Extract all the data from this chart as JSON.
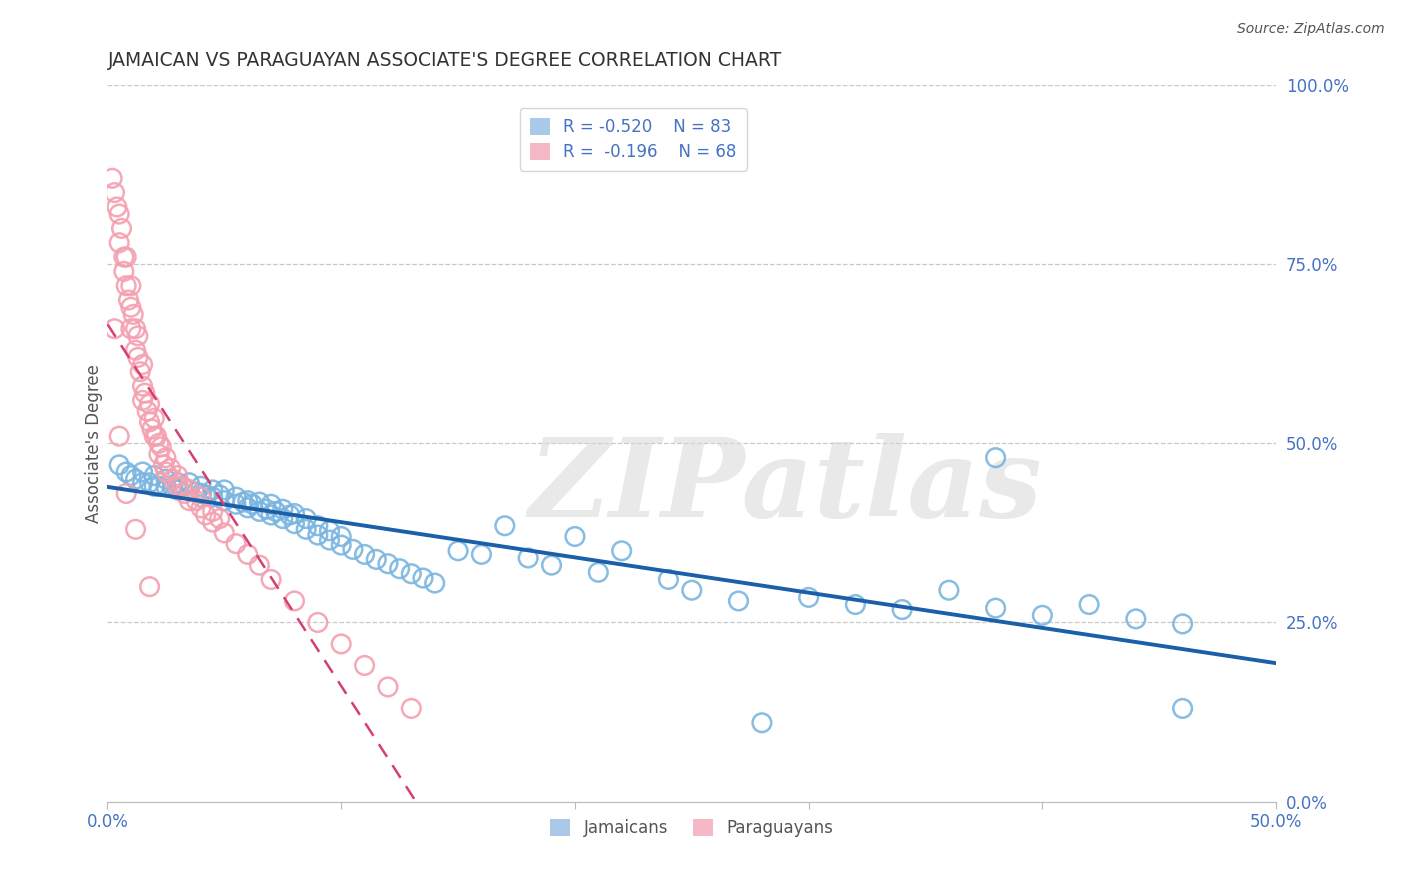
{
  "title": "JAMAICAN VS PARAGUAYAN ASSOCIATE'S DEGREE CORRELATION CHART",
  "source": "Source: ZipAtlas.com",
  "ylabel": "Associate's Degree",
  "legend_blue_r": "R = -0.520",
  "legend_blue_n": "N = 83",
  "legend_pink_r": "R =  -0.196",
  "legend_pink_n": "N = 68",
  "blue_color": "#7ab5e0",
  "pink_color": "#f4a0b0",
  "blue_line_color": "#1a5fa8",
  "pink_line_color": "#d44070",
  "pink_line_dash": [
    6,
    4
  ],
  "watermark_color": "#d8d8d8",
  "background_color": "#ffffff",
  "grid_color": "#c8c8c8",
  "title_color": "#333333",
  "axis_label_color": "#4472C4",
  "source_color": "#555555",
  "blue_scatter_x": [
    0.005,
    0.008,
    0.01,
    0.012,
    0.015,
    0.015,
    0.018,
    0.02,
    0.02,
    0.022,
    0.025,
    0.025,
    0.028,
    0.03,
    0.03,
    0.032,
    0.035,
    0.035,
    0.038,
    0.04,
    0.04,
    0.042,
    0.045,
    0.045,
    0.048,
    0.05,
    0.05,
    0.055,
    0.055,
    0.058,
    0.06,
    0.06,
    0.062,
    0.065,
    0.065,
    0.068,
    0.07,
    0.07,
    0.072,
    0.075,
    0.075,
    0.078,
    0.08,
    0.08,
    0.085,
    0.085,
    0.09,
    0.09,
    0.095,
    0.095,
    0.1,
    0.1,
    0.105,
    0.11,
    0.115,
    0.12,
    0.125,
    0.13,
    0.135,
    0.14,
    0.15,
    0.16,
    0.17,
    0.18,
    0.19,
    0.2,
    0.21,
    0.22,
    0.24,
    0.25,
    0.27,
    0.3,
    0.32,
    0.34,
    0.36,
    0.38,
    0.4,
    0.42,
    0.44,
    0.46,
    0.38,
    0.46,
    0.28
  ],
  "blue_scatter_y": [
    0.47,
    0.46,
    0.455,
    0.45,
    0.46,
    0.445,
    0.445,
    0.44,
    0.455,
    0.44,
    0.44,
    0.45,
    0.438,
    0.445,
    0.435,
    0.44,
    0.435,
    0.445,
    0.432,
    0.43,
    0.44,
    0.428,
    0.435,
    0.425,
    0.428,
    0.42,
    0.435,
    0.415,
    0.425,
    0.418,
    0.41,
    0.42,
    0.415,
    0.405,
    0.418,
    0.408,
    0.4,
    0.415,
    0.405,
    0.395,
    0.408,
    0.4,
    0.388,
    0.402,
    0.38,
    0.395,
    0.372,
    0.385,
    0.365,
    0.378,
    0.358,
    0.37,
    0.352,
    0.345,
    0.338,
    0.332,
    0.325,
    0.318,
    0.312,
    0.305,
    0.35,
    0.345,
    0.385,
    0.34,
    0.33,
    0.37,
    0.32,
    0.35,
    0.31,
    0.295,
    0.28,
    0.285,
    0.275,
    0.268,
    0.295,
    0.27,
    0.26,
    0.275,
    0.255,
    0.248,
    0.48,
    0.13,
    0.11
  ],
  "pink_scatter_x": [
    0.002,
    0.003,
    0.004,
    0.005,
    0.005,
    0.006,
    0.007,
    0.007,
    0.008,
    0.008,
    0.009,
    0.01,
    0.01,
    0.01,
    0.011,
    0.012,
    0.012,
    0.013,
    0.013,
    0.014,
    0.015,
    0.015,
    0.015,
    0.016,
    0.017,
    0.018,
    0.018,
    0.019,
    0.02,
    0.02,
    0.021,
    0.022,
    0.022,
    0.023,
    0.024,
    0.025,
    0.025,
    0.027,
    0.028,
    0.03,
    0.03,
    0.032,
    0.033,
    0.035,
    0.035,
    0.038,
    0.04,
    0.04,
    0.042,
    0.045,
    0.045,
    0.048,
    0.05,
    0.055,
    0.06,
    0.065,
    0.07,
    0.08,
    0.09,
    0.1,
    0.11,
    0.12,
    0.13,
    0.003,
    0.005,
    0.008,
    0.012,
    0.018
  ],
  "pink_scatter_y": [
    0.87,
    0.85,
    0.83,
    0.82,
    0.78,
    0.8,
    0.76,
    0.74,
    0.76,
    0.72,
    0.7,
    0.72,
    0.69,
    0.66,
    0.68,
    0.66,
    0.63,
    0.65,
    0.62,
    0.6,
    0.61,
    0.58,
    0.56,
    0.57,
    0.545,
    0.555,
    0.53,
    0.52,
    0.535,
    0.51,
    0.51,
    0.5,
    0.485,
    0.495,
    0.47,
    0.48,
    0.46,
    0.465,
    0.45,
    0.455,
    0.44,
    0.44,
    0.43,
    0.435,
    0.42,
    0.42,
    0.41,
    0.425,
    0.4,
    0.405,
    0.39,
    0.395,
    0.375,
    0.36,
    0.345,
    0.33,
    0.31,
    0.28,
    0.25,
    0.22,
    0.19,
    0.16,
    0.13,
    0.66,
    0.51,
    0.43,
    0.38,
    0.3
  ]
}
